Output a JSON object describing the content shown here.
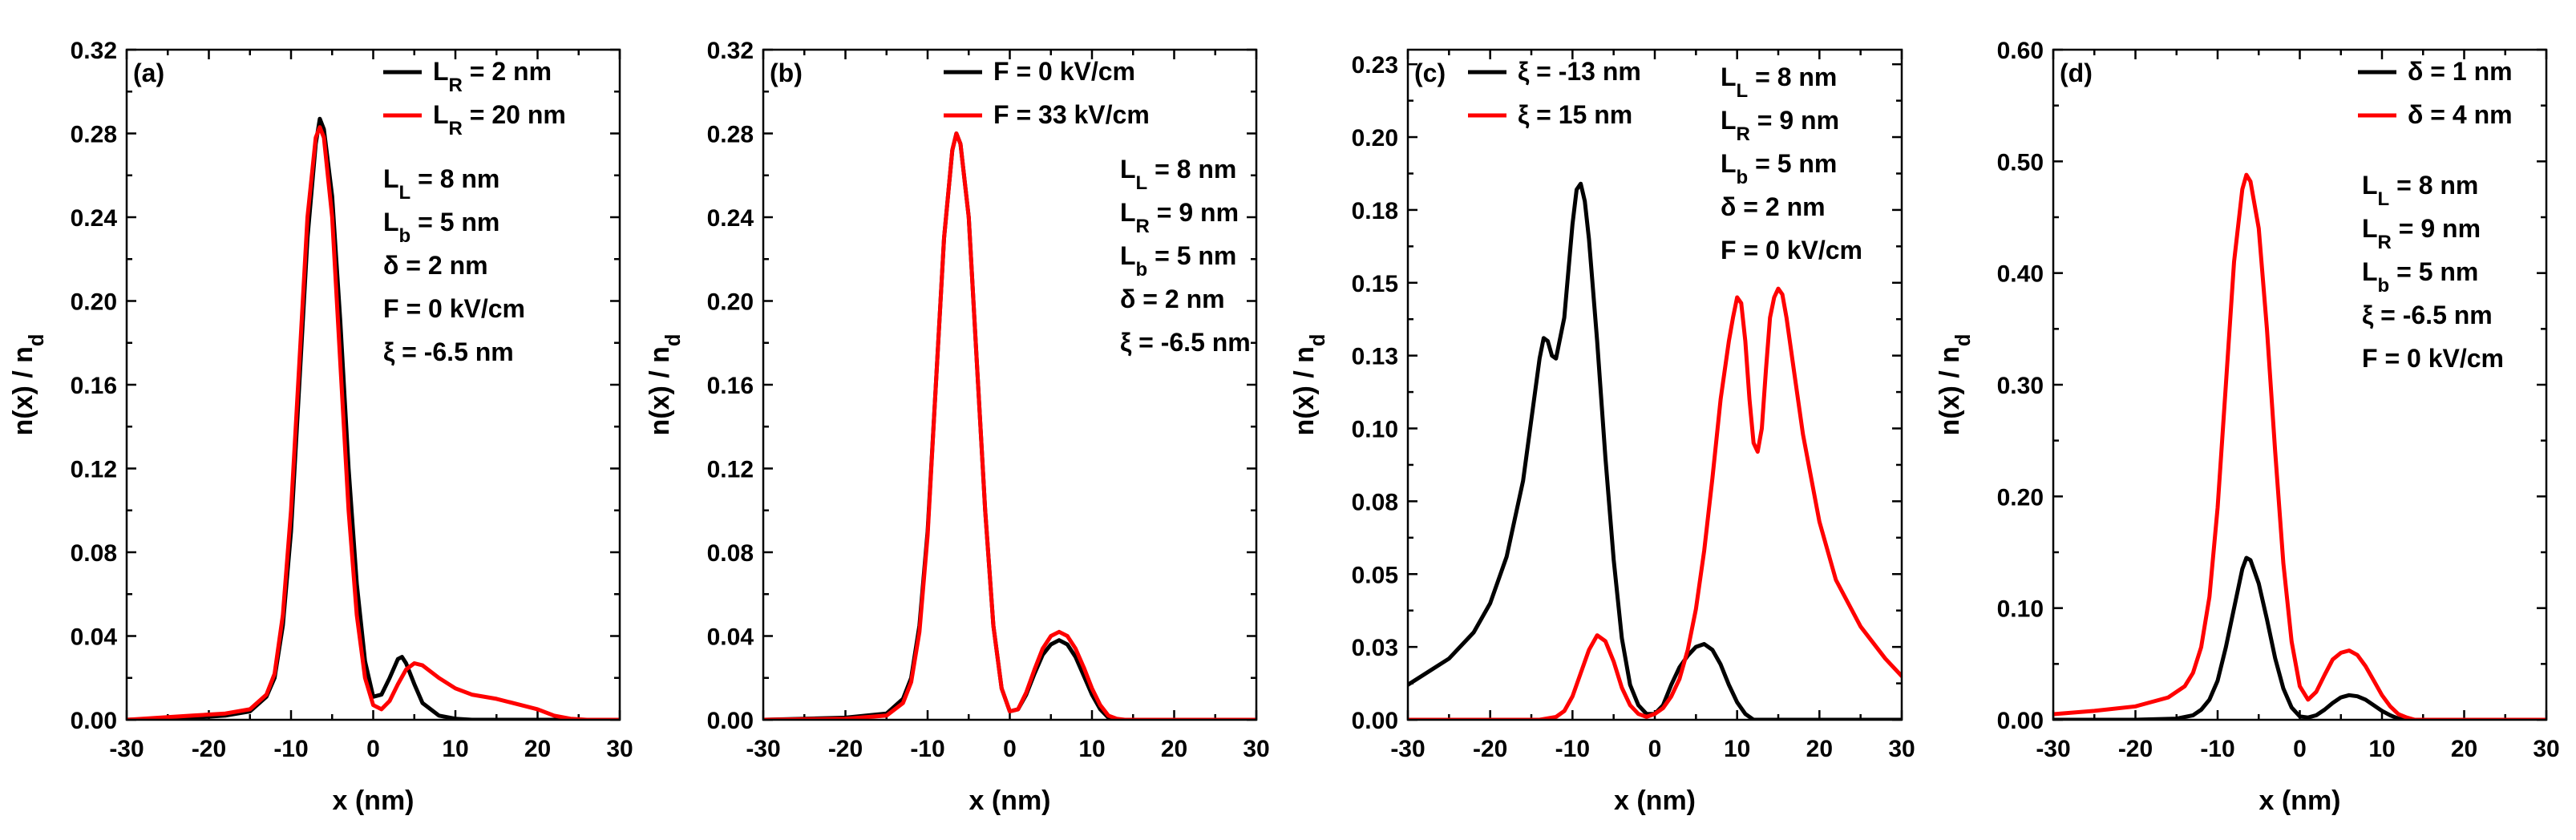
{
  "chart_data": [
    {
      "type": "line",
      "panel_label": "(a)",
      "xlabel": "x (nm)",
      "ylabel": "n(x) / n_d",
      "xlim": [
        -30,
        30
      ],
      "ylim": [
        0,
        0.32
      ],
      "xticks": [
        -30,
        -20,
        -10,
        0,
        10,
        20,
        30
      ],
      "yticks": [
        0.0,
        0.04,
        0.08,
        0.12,
        0.16,
        0.2,
        0.24,
        0.28,
        0.32
      ],
      "ytick_decimals": 2,
      "legend_position": "top-right",
      "series": [
        {
          "name": "L_R = 2 nm",
          "color": "#000000",
          "x": [
            -30,
            -22,
            -18,
            -15,
            -13,
            -12,
            -11,
            -10,
            -9,
            -8,
            -7,
            -6.5,
            -6,
            -5,
            -4,
            -3,
            -2,
            -1,
            0,
            1,
            2,
            3,
            3.5,
            4,
            5,
            6,
            8,
            10,
            12,
            15,
            30
          ],
          "y": [
            0,
            0.001,
            0.002,
            0.004,
            0.011,
            0.02,
            0.045,
            0.09,
            0.16,
            0.23,
            0.275,
            0.287,
            0.282,
            0.25,
            0.19,
            0.12,
            0.065,
            0.028,
            0.011,
            0.012,
            0.02,
            0.029,
            0.03,
            0.027,
            0.017,
            0.008,
            0.002,
            0.0005,
            0,
            0,
            0
          ]
        },
        {
          "name": "L_R = 20 nm",
          "color": "#ff0000",
          "x": [
            -30,
            -22,
            -18,
            -15,
            -13,
            -12,
            -11,
            -10,
            -9,
            -8,
            -7,
            -6.5,
            -6,
            -5,
            -4,
            -3,
            -2,
            -1,
            0,
            1,
            2,
            3,
            4,
            5,
            6,
            8,
            10,
            12,
            15,
            18,
            20,
            22,
            24,
            26,
            30
          ],
          "y": [
            0,
            0.002,
            0.003,
            0.005,
            0.012,
            0.022,
            0.05,
            0.1,
            0.17,
            0.24,
            0.278,
            0.283,
            0.278,
            0.24,
            0.17,
            0.1,
            0.05,
            0.02,
            0.007,
            0.005,
            0.009,
            0.017,
            0.024,
            0.027,
            0.026,
            0.02,
            0.015,
            0.012,
            0.01,
            0.007,
            0.005,
            0.002,
            0.0005,
            0,
            0
          ]
        }
      ],
      "annotations": [
        {
          "main": "L",
          "sub": "L",
          "rest": " = 8 nm"
        },
        {
          "main": "L",
          "sub": "b",
          "rest": " = 5 nm"
        },
        {
          "main": "δ = 2 nm",
          "sub": "",
          "rest": ""
        },
        {
          "main": "F = 0 kV/cm",
          "sub": "",
          "rest": ""
        },
        {
          "main": "ξ = -6.5 nm",
          "sub": "",
          "rest": ""
        }
      ]
    },
    {
      "type": "line",
      "panel_label": "(b)",
      "xlabel": "x (nm)",
      "ylabel": "n(x) / n_d",
      "xlim": [
        -30,
        30
      ],
      "ylim": [
        0,
        0.32
      ],
      "xticks": [
        -30,
        -20,
        -10,
        0,
        10,
        20,
        30
      ],
      "yticks": [
        0.0,
        0.04,
        0.08,
        0.12,
        0.16,
        0.2,
        0.24,
        0.28,
        0.32
      ],
      "ytick_decimals": 2,
      "legend_position": "top-right",
      "series": [
        {
          "name": "F = 0 kV/cm",
          "color": "#000000",
          "x": [
            -30,
            -20,
            -15,
            -13,
            -12,
            -11,
            -10,
            -9,
            -8,
            -7,
            -6.5,
            -6,
            -5,
            -4,
            -3,
            -2,
            -1,
            0,
            1,
            2,
            3,
            4,
            5,
            6,
            7,
            8,
            9,
            10,
            11,
            12,
            13,
            30
          ],
          "y": [
            0,
            0.001,
            0.003,
            0.01,
            0.02,
            0.045,
            0.09,
            0.16,
            0.23,
            0.272,
            0.28,
            0.275,
            0.24,
            0.17,
            0.1,
            0.045,
            0.015,
            0.004,
            0.005,
            0.012,
            0.022,
            0.031,
            0.036,
            0.038,
            0.036,
            0.03,
            0.021,
            0.012,
            0.005,
            0.001,
            0,
            0
          ]
        },
        {
          "name": "F = 33 kV/cm",
          "color": "#ff0000",
          "x": [
            -30,
            -20,
            -15,
            -13,
            -12,
            -11,
            -10,
            -9,
            -8,
            -7,
            -6.5,
            -6,
            -5,
            -4,
            -3,
            -2,
            -1,
            0,
            1,
            2,
            3,
            4,
            5,
            6,
            7,
            8,
            9,
            10,
            11,
            12,
            13,
            14,
            30
          ],
          "y": [
            0,
            0.0005,
            0.002,
            0.008,
            0.018,
            0.042,
            0.088,
            0.16,
            0.23,
            0.272,
            0.28,
            0.275,
            0.24,
            0.17,
            0.1,
            0.045,
            0.015,
            0.004,
            0.005,
            0.013,
            0.024,
            0.034,
            0.04,
            0.042,
            0.04,
            0.034,
            0.025,
            0.015,
            0.007,
            0.002,
            0.0005,
            0,
            0
          ]
        }
      ],
      "annotations": [
        {
          "main": "L",
          "sub": "L",
          "rest": " = 8 nm"
        },
        {
          "main": "L",
          "sub": "R",
          "rest": " = 9 nm"
        },
        {
          "main": "L",
          "sub": "b",
          "rest": " = 5 nm"
        },
        {
          "main": "δ = 2 nm",
          "sub": "",
          "rest": ""
        },
        {
          "main": "ξ = -6.5 nm",
          "sub": "",
          "rest": ""
        }
      ]
    },
    {
      "type": "line",
      "panel_label": "(c)",
      "xlabel": "x (nm)",
      "ylabel": "n(x) / n_d",
      "xlim": [
        -30,
        30
      ],
      "ylim": [
        0,
        0.23
      ],
      "xticks": [
        -30,
        -20,
        -10,
        0,
        10,
        20,
        30
      ],
      "yticks": [
        0.0,
        0.025,
        0.05,
        0.075,
        0.1,
        0.125,
        0.15,
        0.175,
        0.2,
        0.225
      ],
      "ytick_labels": [
        "0.00",
        "0.03",
        "0.05",
        "0.08",
        "0.10",
        "0.13",
        "0.15",
        "0.18",
        "0.20",
        "0.23"
      ],
      "legend_position": "top-left",
      "series": [
        {
          "name": "ξ = -13 nm",
          "color": "#000000",
          "x": [
            -30,
            -25,
            -22,
            -20,
            -18,
            -16,
            -15,
            -14,
            -13.5,
            -13,
            -12.5,
            -12,
            -11,
            -10,
            -9.5,
            -9,
            -8.5,
            -8,
            -7,
            -6,
            -5,
            -4,
            -3,
            -2,
            -1,
            0,
            1,
            2,
            3,
            4,
            5,
            6,
            7,
            8,
            9,
            10,
            11,
            12,
            30
          ],
          "y": [
            0.012,
            0.021,
            0.03,
            0.04,
            0.056,
            0.082,
            0.103,
            0.124,
            0.131,
            0.13,
            0.125,
            0.124,
            0.138,
            0.17,
            0.182,
            0.184,
            0.178,
            0.165,
            0.13,
            0.09,
            0.055,
            0.028,
            0.012,
            0.005,
            0.002,
            0.002,
            0.005,
            0.012,
            0.018,
            0.022,
            0.025,
            0.026,
            0.024,
            0.019,
            0.012,
            0.006,
            0.002,
            0,
            0
          ]
        },
        {
          "name": "ξ = 15 nm",
          "color": "#ff0000",
          "x": [
            -30,
            -14,
            -12,
            -11,
            -10,
            -9,
            -8,
            -7,
            -6,
            -5,
            -4,
            -3,
            -2,
            -1,
            0,
            1,
            2,
            3,
            4,
            5,
            6,
            7,
            8,
            9,
            9.5,
            10,
            10.5,
            11,
            11.5,
            12,
            12.5,
            13,
            13.5,
            14,
            14.5,
            15,
            15.5,
            16,
            17,
            18,
            20,
            22,
            25,
            28,
            30
          ],
          "y": [
            0,
            0,
            0.001,
            0.003,
            0.008,
            0.016,
            0.024,
            0.029,
            0.027,
            0.02,
            0.011,
            0.005,
            0.002,
            0.001,
            0.002,
            0.004,
            0.008,
            0.014,
            0.024,
            0.038,
            0.058,
            0.083,
            0.11,
            0.13,
            0.138,
            0.145,
            0.143,
            0.13,
            0.11,
            0.095,
            0.092,
            0.1,
            0.12,
            0.138,
            0.145,
            0.148,
            0.146,
            0.138,
            0.118,
            0.098,
            0.068,
            0.048,
            0.032,
            0.021,
            0.015
          ]
        }
      ],
      "annotations": [
        {
          "main": "L",
          "sub": "L",
          "rest": " = 8 nm"
        },
        {
          "main": "L",
          "sub": "R",
          "rest": " = 9 nm"
        },
        {
          "main": "L",
          "sub": "b",
          "rest": " = 5 nm"
        },
        {
          "main": "δ = 2 nm",
          "sub": "",
          "rest": ""
        },
        {
          "main": "F = 0 kV/cm",
          "sub": "",
          "rest": ""
        }
      ]
    },
    {
      "type": "line",
      "panel_label": "(d)",
      "xlabel": "x (nm)",
      "ylabel": "n(x) / n_d",
      "xlim": [
        -30,
        30
      ],
      "ylim": [
        0,
        0.6
      ],
      "xticks": [
        -30,
        -20,
        -10,
        0,
        10,
        20,
        30
      ],
      "yticks": [
        0.0,
        0.1,
        0.2,
        0.3,
        0.4,
        0.5,
        0.6
      ],
      "ytick_decimals": 2,
      "legend_position": "top-right",
      "series": [
        {
          "name": "δ = 1 nm",
          "color": "#000000",
          "x": [
            -30,
            -20,
            -15,
            -13,
            -12,
            -11,
            -10,
            -9,
            -8,
            -7,
            -6.5,
            -6,
            -5,
            -4,
            -3,
            -2,
            -1,
            0,
            1,
            2,
            3,
            4,
            5,
            6,
            7,
            8,
            9,
            10,
            11,
            12,
            13,
            30
          ],
          "y": [
            0,
            0,
            0.001,
            0.004,
            0.009,
            0.018,
            0.035,
            0.065,
            0.1,
            0.135,
            0.145,
            0.143,
            0.122,
            0.09,
            0.055,
            0.028,
            0.011,
            0.003,
            0.002,
            0.004,
            0.009,
            0.015,
            0.02,
            0.022,
            0.021,
            0.018,
            0.013,
            0.008,
            0.004,
            0.001,
            0,
            0
          ]
        },
        {
          "name": "δ = 4 nm",
          "color": "#ff0000",
          "x": [
            -30,
            -25,
            -20,
            -16,
            -14,
            -13,
            -12,
            -11,
            -10,
            -9,
            -8,
            -7,
            -6.5,
            -6,
            -5,
            -4,
            -3,
            -2,
            -1,
            0,
            1,
            2,
            3,
            4,
            5,
            6,
            7,
            8,
            9,
            10,
            11,
            12,
            13,
            14,
            30
          ],
          "y": [
            0.005,
            0.008,
            0.012,
            0.02,
            0.03,
            0.042,
            0.065,
            0.11,
            0.19,
            0.3,
            0.41,
            0.475,
            0.488,
            0.482,
            0.44,
            0.35,
            0.24,
            0.14,
            0.07,
            0.03,
            0.018,
            0.025,
            0.04,
            0.054,
            0.06,
            0.062,
            0.058,
            0.048,
            0.035,
            0.022,
            0.012,
            0.005,
            0.002,
            0,
            0
          ]
        }
      ],
      "annotations": [
        {
          "main": "L",
          "sub": "L",
          "rest": " = 8 nm"
        },
        {
          "main": "L",
          "sub": "R",
          "rest": " = 9 nm"
        },
        {
          "main": "L",
          "sub": "b",
          "rest": " = 5 nm"
        },
        {
          "main": "ξ = -6.5 nm",
          "sub": "",
          "rest": ""
        },
        {
          "main": "F = 0 kV/cm",
          "sub": "",
          "rest": ""
        }
      ]
    }
  ],
  "legend_labels": [
    [
      {
        "main": "L",
        "sub": "R",
        "rest": " = 2 nm"
      },
      {
        "main": "L",
        "sub": "R",
        "rest": " = 20 nm"
      }
    ],
    [
      {
        "main": "F = 0 kV/cm",
        "sub": "",
        "rest": ""
      },
      {
        "main": "F = 33 kV/cm",
        "sub": "",
        "rest": ""
      }
    ],
    [
      {
        "main": "ξ = -13 nm",
        "sub": "",
        "rest": ""
      },
      {
        "main": "ξ = 15 nm",
        "sub": "",
        "rest": ""
      }
    ],
    [
      {
        "main": "δ = 1 nm",
        "sub": "",
        "rest": ""
      },
      {
        "main": "δ = 4 nm",
        "sub": "",
        "rest": ""
      }
    ]
  ],
  "ylabel_parts": {
    "main": "n(x) / n",
    "sub": "d"
  }
}
